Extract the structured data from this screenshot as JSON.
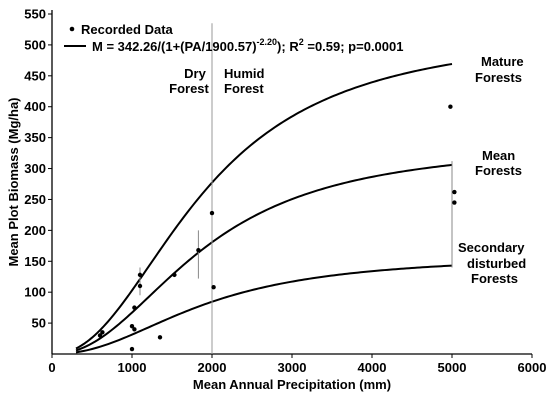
{
  "chart_data": {
    "type": "scatter",
    "xlabel": "Mean Annual Precipitation (mm)",
    "ylabel": "Mean Plot Biomass (Mg/ha)",
    "xlim": [
      0,
      6000
    ],
    "ylim": [
      0,
      550
    ],
    "xticks": [
      0,
      1000,
      2000,
      3000,
      4000,
      5000,
      6000
    ],
    "yticks": [
      50,
      100,
      150,
      200,
      250,
      300,
      350,
      400,
      450,
      500,
      550
    ],
    "legend": {
      "placement": "top-left",
      "points_label": "Recorded Data",
      "curve_label_main": "M = 342.26/(1+(PA/1900.57)",
      "curve_label_exponent": "-2.20",
      "curve_label_fit": "); R",
      "curve_label_r2_sup": "2",
      "curve_label_tail": " =0.59; p=0.0001"
    },
    "series": [
      {
        "name": "Recorded Data",
        "kind": "points",
        "points": [
          [
            600,
            30
          ],
          [
            630,
            35
          ],
          [
            1000,
            45
          ],
          [
            1030,
            40
          ],
          [
            1000,
            8
          ],
          [
            1030,
            75
          ],
          [
            1100,
            110
          ],
          [
            1100,
            128
          ],
          [
            1350,
            27
          ],
          [
            1530,
            128
          ],
          [
            1830,
            168
          ],
          [
            2000,
            228
          ],
          [
            2020,
            108
          ],
          [
            4980,
            400
          ],
          [
            5030,
            262
          ],
          [
            5030,
            245
          ]
        ],
        "error_bars": [
          {
            "x": 1100,
            "low": 95,
            "high": 140
          },
          {
            "x": 1830,
            "low": 122,
            "high": 200
          },
          {
            "x": 5000,
            "low": 140,
            "high": 312
          }
        ]
      },
      {
        "name": "Mature Forests",
        "kind": "curve",
        "asymptote": 525,
        "a": 1900.57,
        "b": 2.2
      },
      {
        "name": "Mean Forests",
        "kind": "curve",
        "asymptote": 342.26,
        "a": 1900.57,
        "b": 2.2
      },
      {
        "name": "Secondary disturbed Forests",
        "kind": "curve",
        "asymptote": 160,
        "a": 1900.57,
        "b": 2.2
      }
    ],
    "curve_x_range": [
      300,
      5000
    ],
    "vertical_reference_x": 2000,
    "annotations": {
      "dry": [
        "Dry",
        "Forest"
      ],
      "humid": [
        "Humid",
        "Forest"
      ],
      "mature": [
        "Mature",
        "Forests"
      ],
      "mean": [
        "Mean",
        "Forests"
      ],
      "secondary": [
        "Secondary",
        "disturbed",
        "Forests"
      ]
    },
    "grid": false
  }
}
